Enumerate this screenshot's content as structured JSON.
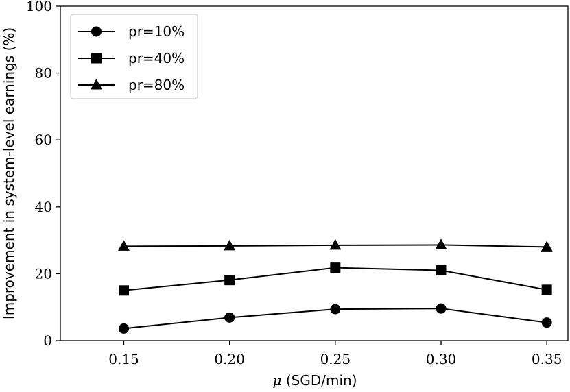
{
  "chart_data": {
    "type": "line",
    "title": "",
    "xlabel_symbol": "μ",
    "xlabel_unit": "(SGD/min)",
    "ylabel": "Improvement in system-level earnings (%)",
    "x": [
      0.15,
      0.2,
      0.25,
      0.3,
      0.35
    ],
    "x_tick_labels": [
      "0.15",
      "0.20",
      "0.25",
      "0.30",
      "0.35"
    ],
    "y_ticks": [
      0,
      20,
      40,
      60,
      80,
      100
    ],
    "y_tick_labels": [
      "0",
      "20",
      "40",
      "60",
      "80",
      "100"
    ],
    "xlim": [
      0.12,
      0.36
    ],
    "ylim": [
      0,
      100
    ],
    "legend_position": "upper-left",
    "series": [
      {
        "name": "pr=10%",
        "marker": "circle",
        "values": [
          3.6,
          6.9,
          9.4,
          9.6,
          5.4
        ]
      },
      {
        "name": "pr=40%",
        "marker": "square",
        "values": [
          15.0,
          18.1,
          21.8,
          21.0,
          15.2
        ]
      },
      {
        "name": "pr=80%",
        "marker": "triangle",
        "values": [
          28.2,
          28.3,
          28.5,
          28.6,
          28.0
        ]
      }
    ],
    "colors": {
      "line": "#000000",
      "background": "#ffffff"
    }
  }
}
